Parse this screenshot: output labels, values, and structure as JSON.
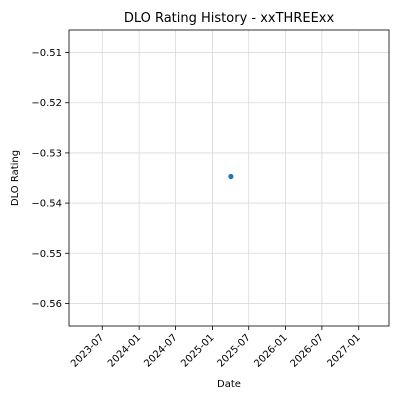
{
  "chart_data": {
    "type": "scatter",
    "title": "DLO Rating History - xxTHREExx",
    "xlabel": "Date",
    "ylabel": "DLO Rating",
    "x_scale": "date",
    "xlim": [
      "2023-01-16",
      "2027-06-01"
    ],
    "ylim": [
      -0.5645,
      -0.5055
    ],
    "grid": true,
    "legend": "none",
    "x_ticks": [
      "2023-07-01",
      "2024-01-01",
      "2024-07-01",
      "2025-01-01",
      "2025-07-01",
      "2026-01-01",
      "2026-07-01",
      "2027-01-01"
    ],
    "x_tick_labels": [
      "2023-07",
      "2024-01",
      "2024-07",
      "2025-01",
      "2025-07",
      "2026-01",
      "2026-07",
      "2027-01"
    ],
    "y_ticks": [
      -0.56,
      -0.55,
      -0.54,
      -0.53,
      -0.52,
      -0.51
    ],
    "y_tick_labels": [
      "−0.56",
      "−0.55",
      "−0.54",
      "−0.53",
      "−0.52",
      "−0.51"
    ],
    "series": [
      {
        "color": "#1f77b4",
        "points": [
          {
            "x": "2025-04-03",
            "y": -0.5347
          }
        ]
      }
    ],
    "colors": {
      "marker": "#1f77b4",
      "grid": "#d9d9d9",
      "axes": "#000000"
    }
  }
}
